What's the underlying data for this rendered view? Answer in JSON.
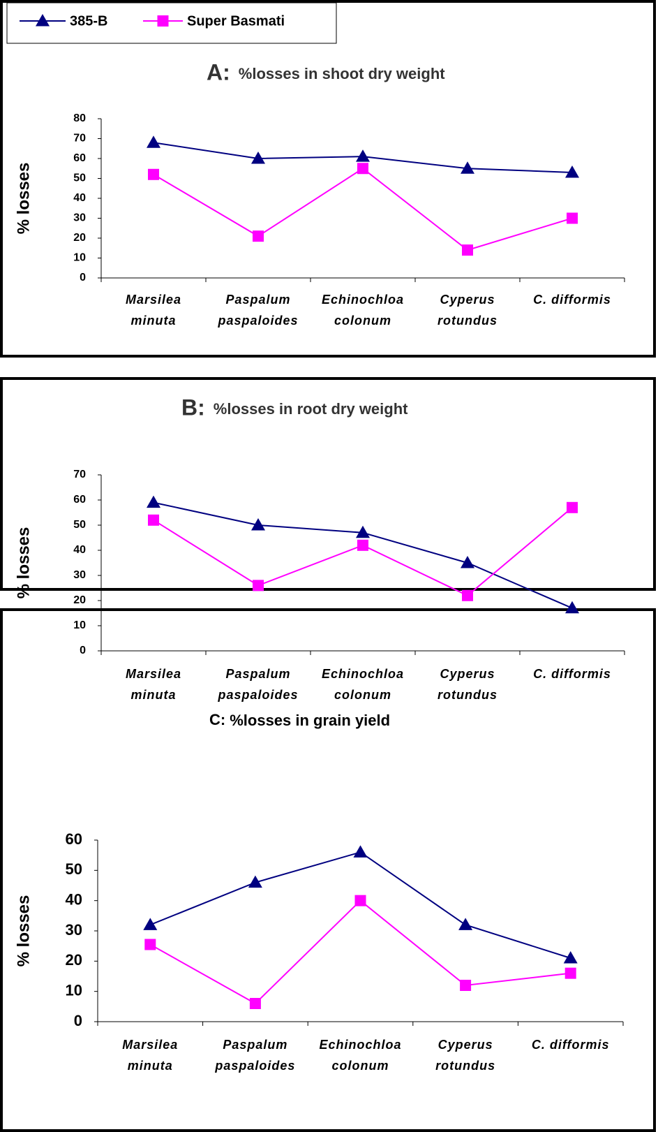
{
  "legend": [
    {
      "name": "385-B",
      "color": "#000080",
      "marker": "triangle"
    },
    {
      "name": "Super Basmati",
      "color": "#ff00ff",
      "marker": "square"
    }
  ],
  "chart_data": [
    {
      "type": "line",
      "panel_label": "A:",
      "title": "%losses in shoot dry weight",
      "y_label": "% losses",
      "categories": [
        "Marsilea\nminuta",
        "Paspalum\npaspaloides",
        "Echinochloa\ncolonum",
        "Cyperus\nrotundus",
        "C. difformis"
      ],
      "series": [
        {
          "values": [
            68,
            60,
            61,
            55,
            53
          ]
        },
        {
          "values": [
            52,
            21,
            55,
            14,
            30
          ]
        }
      ],
      "ylim": [
        0,
        80
      ],
      "yticks": [
        0,
        10,
        20,
        30,
        40,
        50,
        60,
        70,
        80
      ]
    },
    {
      "type": "line",
      "panel_label": "B:",
      "title": "%losses in root dry weight",
      "y_label": "% losses",
      "categories": [
        "Marsilea\nminuta",
        "Paspalum\npaspaloides",
        "Echinochloa\ncolonum",
        "Cyperus\nrotundus",
        "C. difformis"
      ],
      "series": [
        {
          "values": [
            59,
            50,
            47,
            35,
            17
          ]
        },
        {
          "values": [
            52,
            26,
            42,
            22,
            57
          ]
        }
      ],
      "ylim": [
        0,
        70
      ],
      "yticks": [
        0,
        10,
        20,
        30,
        40,
        50,
        60,
        70
      ]
    },
    {
      "type": "line",
      "panel_label": "C:",
      "title": "%losses in grain yield",
      "y_label": "% losses",
      "categories": [
        "Marsilea\nminuta",
        "Paspalum\npaspaloides",
        "Echinochloa\ncolonum",
        "Cyperus\nrotundus",
        "C. difformis"
      ],
      "series": [
        {
          "values": [
            32,
            46,
            56,
            32,
            21
          ]
        },
        {
          "values": [
            25.5,
            6,
            40,
            12,
            16
          ]
        }
      ],
      "ylim": [
        0,
        60
      ],
      "yticks": [
        0,
        10,
        20,
        30,
        40,
        50,
        60
      ]
    }
  ]
}
